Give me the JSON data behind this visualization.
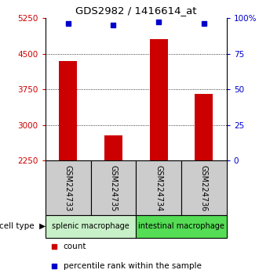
{
  "title": "GDS2982 / 1416614_at",
  "samples": [
    "GSM224733",
    "GSM224735",
    "GSM224734",
    "GSM224736"
  ],
  "counts": [
    4350,
    2780,
    4800,
    3650
  ],
  "percentiles": [
    96,
    95,
    97,
    96
  ],
  "ylim_left": [
    2250,
    5250
  ],
  "ylim_right": [
    0,
    100
  ],
  "yticks_left": [
    2250,
    3000,
    3750,
    4500,
    5250
  ],
  "yticks_right": [
    0,
    25,
    50,
    75,
    100
  ],
  "ytick_labels_right": [
    "0",
    "25",
    "50",
    "75",
    "100%"
  ],
  "grid_values": [
    3000,
    3750,
    4500
  ],
  "bar_color": "#cc0000",
  "marker_color": "#0000cc",
  "cell_types": [
    "splenic macrophage",
    "splenic macrophage",
    "intestinal macrophage",
    "intestinal macrophage"
  ],
  "cell_type_colors": {
    "splenic macrophage": "#c8f0c8",
    "intestinal macrophage": "#55dd55"
  },
  "sample_box_color": "#cccccc",
  "ylabel_left_color": "#cc0000",
  "ylabel_right_color": "#0000cc",
  "background_color": "#ffffff"
}
